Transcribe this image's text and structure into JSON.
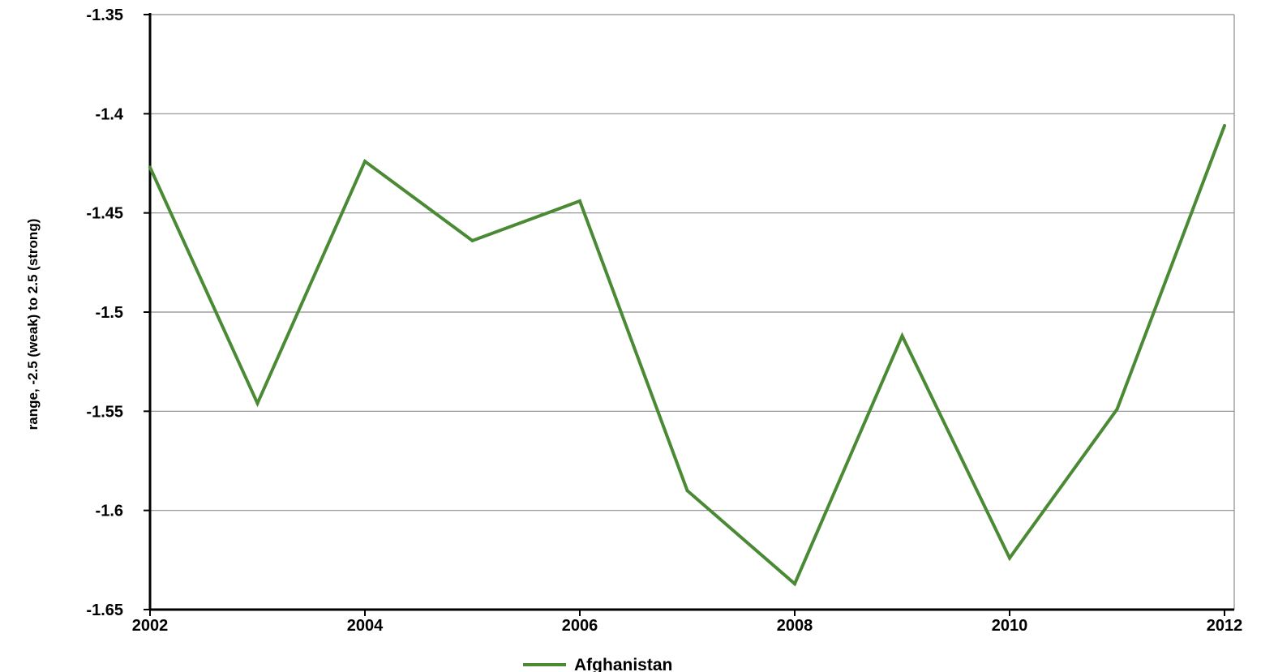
{
  "chart_data": {
    "type": "line",
    "title": "",
    "xlabel": "",
    "ylabel": "range, -2.5 (weak) to 2.5 (strong)",
    "x": [
      2002,
      2003,
      2004,
      2005,
      2006,
      2007,
      2008,
      2009,
      2010,
      2011,
      2012
    ],
    "x_ticks": [
      "2002",
      "2004",
      "2006",
      "2008",
      "2010",
      "2012"
    ],
    "xlim": [
      2002,
      2012
    ],
    "y_ticks": [
      "-1.35",
      "-1.4",
      "-1.45",
      "-1.5",
      "-1.55",
      "-1.6",
      "-1.65"
    ],
    "ylim": [
      -1.65,
      -1.35
    ],
    "grid": true,
    "legend_position": "bottom-center",
    "series": [
      {
        "name": "Afghanistan",
        "color": "#4a8a35",
        "values": [
          -1.427,
          -1.546,
          -1.424,
          -1.464,
          -1.444,
          -1.59,
          -1.637,
          -1.512,
          -1.624,
          -1.549,
          -1.406
        ]
      }
    ]
  }
}
